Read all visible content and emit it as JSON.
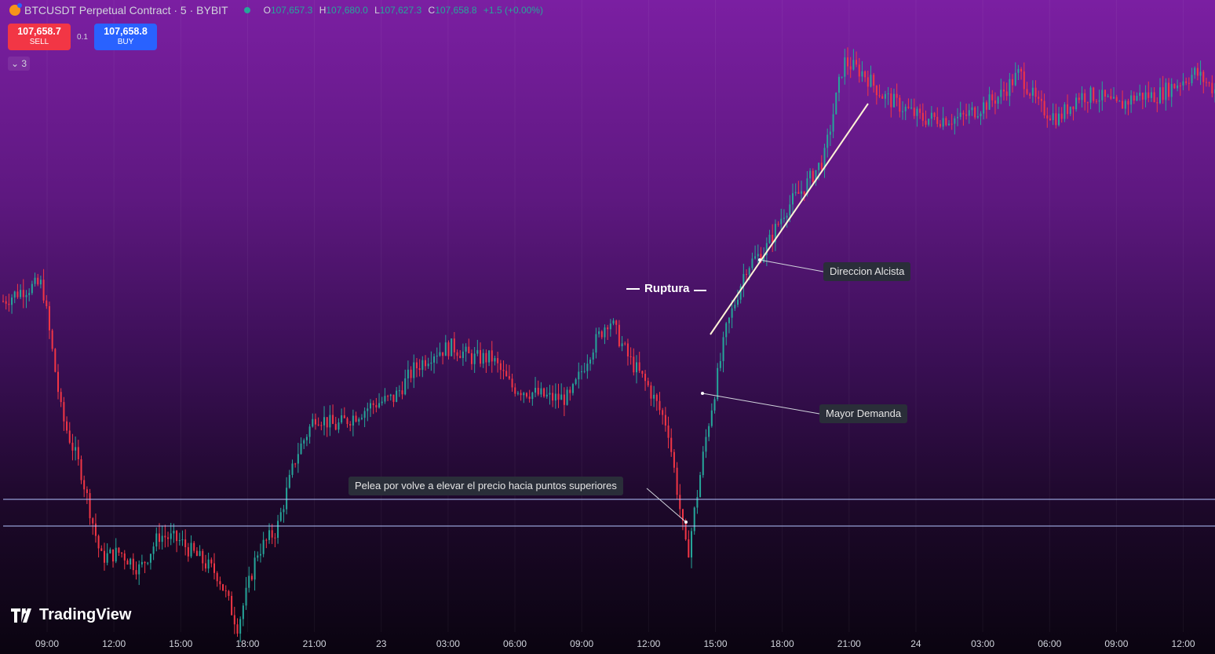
{
  "header": {
    "symbol_icon": "bitcoin-icon",
    "title": "BTCUSDT Perpetual Contract · 5 · BYBIT",
    "ohlc": {
      "o_label": "O",
      "o": "107,657.3",
      "h_label": "H",
      "h": "107,680.0",
      "l_label": "L",
      "l": "107,627.3",
      "c_label": "C",
      "c": "107,658.8",
      "change": "+1.5 (+0.00%)"
    }
  },
  "trade": {
    "sell_price": "107,658.7",
    "sell_label": "SELL",
    "spread": "0.1",
    "buy_price": "107,658.8",
    "buy_label": "BUY"
  },
  "indicators": {
    "count": "3",
    "icon": "chevron-down-icon"
  },
  "branding": {
    "name": "TradingView"
  },
  "colors": {
    "up": "#26a69a",
    "down": "#f23645",
    "buy": "#2962ff",
    "sell": "#f23645"
  },
  "chart_data": {
    "type": "candlestick",
    "x_ticks": [
      "09:00",
      "12:00",
      "15:00",
      "18:00",
      "21:00",
      "23",
      "03:00",
      "06:00",
      "09:00",
      "12:00",
      "15:00",
      "18:00",
      "21:00",
      "24",
      "03:00",
      "06:00",
      "09:00",
      "12:00"
    ],
    "close_path": [
      [
        "08:00",
        0.5
      ],
      [
        "09:00",
        0.52
      ],
      [
        "09:30",
        0.53
      ],
      [
        "10:00",
        0.3
      ],
      [
        "11:00",
        0.2
      ],
      [
        "12:00",
        0.05
      ],
      [
        "13:00",
        0.06
      ],
      [
        "14:00",
        0.03
      ],
      [
        "14:30",
        0.09
      ],
      [
        "15:00",
        0.08
      ],
      [
        "16:00",
        0.05
      ],
      [
        "17:00",
        0.02
      ],
      [
        "18:00",
        -0.07
      ],
      [
        "18:30",
        0.06
      ],
      [
        "19:00",
        0.1
      ],
      [
        "19:30",
        0.23
      ],
      [
        "20:00",
        0.3
      ],
      [
        "21:00",
        0.28
      ],
      [
        "22:00",
        0.3
      ],
      [
        "23:00",
        0.32
      ],
      [
        "00:00",
        0.33
      ],
      [
        "01:00",
        0.38
      ],
      [
        "02:00",
        0.41
      ],
      [
        "03:00",
        0.42
      ],
      [
        "04:00",
        0.4
      ],
      [
        "05:00",
        0.4
      ],
      [
        "06:00",
        0.35
      ],
      [
        "07:00",
        0.34
      ],
      [
        "08:00",
        0.33
      ],
      [
        "09:00",
        0.33
      ],
      [
        "10:00",
        0.41
      ],
      [
        "10:30",
        0.47
      ],
      [
        "11:00",
        0.4
      ],
      [
        "12:00",
        0.35
      ],
      [
        "13:00",
        0.28
      ],
      [
        "13:40",
        0.05
      ],
      [
        "14:15",
        0.27
      ],
      [
        "14:40",
        0.45
      ],
      [
        "15:00",
        0.56
      ],
      [
        "16:00",
        0.59
      ],
      [
        "17:00",
        0.66
      ],
      [
        "18:00",
        0.7
      ],
      [
        "19:00",
        0.75
      ],
      [
        "19:30",
        0.92
      ],
      [
        "20:00",
        0.9
      ],
      [
        "21:00",
        0.86
      ],
      [
        "22:00",
        0.84
      ],
      [
        "23:00",
        0.82
      ],
      [
        "00:00",
        0.82
      ],
      [
        "01:00",
        0.82
      ],
      [
        "02:00",
        0.84
      ],
      [
        "03:00",
        0.86
      ],
      [
        "04:00",
        0.9
      ],
      [
        "05:00",
        0.84
      ],
      [
        "05:30",
        0.82
      ],
      [
        "06:00",
        0.86
      ],
      [
        "07:00",
        0.86
      ],
      [
        "08:00",
        0.84
      ],
      [
        "09:00",
        0.86
      ],
      [
        "10:00",
        0.86
      ],
      [
        "11:00",
        0.88
      ],
      [
        "12:00",
        0.9
      ],
      [
        "12:30",
        0.87
      ]
    ],
    "horizontal_levels": [
      "upper",
      "lower"
    ],
    "trend_line": "Direccion Alcista",
    "annotations": [
      {
        "text": "Ruptura"
      },
      {
        "text": "Direccion Alcista"
      },
      {
        "text": "Mayor Demanda"
      },
      {
        "text": "Pelea por volve a elevar el precio hacia puntos superiores"
      }
    ]
  }
}
